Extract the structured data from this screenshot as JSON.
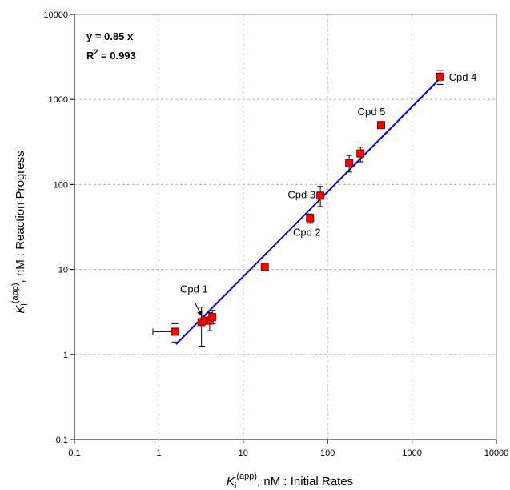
{
  "chart_data": {
    "type": "scatter",
    "x_scale": "log",
    "y_scale": "log",
    "xlim": [
      0.1,
      10000
    ],
    "ylim": [
      0.1,
      10000
    ],
    "grid": true,
    "x_ticks": [
      "0.1",
      "1",
      "10",
      "100",
      "1000",
      "10000"
    ],
    "y_ticks": [
      "0.1",
      "1",
      "10",
      "100",
      "1000",
      "10000"
    ],
    "xlabel": {
      "main": "K",
      "sub": "i",
      "sup": "(app)",
      "rest": ", nM : Initial Rates"
    },
    "ylabel": {
      "main": "K",
      "sub": "i",
      "sup": "(app)",
      "rest": ", nM : Reaction Progress"
    },
    "equation": {
      "line1": "y = 0.85 x",
      "line2_pre": "R",
      "line2_sup": "2",
      "line2_post": " = 0.993"
    },
    "marker_color": "#ff0000",
    "line_color": "#0000cc",
    "fit": {
      "x": [
        1.6,
        2200
      ],
      "y": [
        1.32,
        1800
      ]
    },
    "points": [
      {
        "x": 1.55,
        "y": 1.85,
        "xerr": [
          0.85,
          1.55
        ],
        "yerr": [
          1.4,
          2.3
        ]
      },
      {
        "x": 3.2,
        "y": 2.4,
        "xerr": [
          3.2,
          3.2
        ],
        "yerr": [
          1.25,
          3.6
        ]
      },
      {
        "x": 3.5,
        "y": 2.5,
        "xerr": [
          3.5,
          3.5
        ],
        "yerr": [
          2.3,
          2.7
        ]
      },
      {
        "x": 4.0,
        "y": 2.5,
        "xerr": [
          4.0,
          4.0
        ],
        "yerr": [
          1.9,
          3.1
        ]
      },
      {
        "x": 4.3,
        "y": 2.75,
        "xerr": [
          4.3,
          4.3
        ],
        "yerr": [
          2.3,
          3.3
        ]
      },
      {
        "x": 18,
        "y": 10.8,
        "xerr": [
          18,
          18
        ],
        "yerr": [
          10.8,
          10.8
        ]
      },
      {
        "x": 62,
        "y": 40,
        "xerr": [
          62,
          62
        ],
        "yerr": [
          35,
          45
        ]
      },
      {
        "x": 82,
        "y": 74,
        "xerr": [
          82,
          82
        ],
        "yerr": [
          55,
          95
        ]
      },
      {
        "x": 180,
        "y": 178,
        "xerr": [
          180,
          180
        ],
        "yerr": [
          140,
          220
        ]
      },
      {
        "x": 245,
        "y": 232,
        "xerr": [
          245,
          245
        ],
        "yerr": [
          185,
          275
        ]
      },
      {
        "x": 430,
        "y": 500,
        "xerr": [
          430,
          430
        ],
        "yerr": [
          500,
          500
        ]
      },
      {
        "x": 2150,
        "y": 1850,
        "xerr": [
          2150,
          2150
        ],
        "yerr": [
          1500,
          2200
        ]
      }
    ],
    "annotations": [
      {
        "text": "Cpd 1",
        "x": 3.3,
        "y": 2.45,
        "arrow": true
      },
      {
        "text": "Cpd 2",
        "x": 62,
        "y": 40
      },
      {
        "text": "Cpd 3",
        "x": 82,
        "y": 74
      },
      {
        "text": "Cpd 4",
        "x": 2150,
        "y": 1850
      },
      {
        "text": "Cpd 5",
        "x": 430,
        "y": 500
      }
    ]
  }
}
